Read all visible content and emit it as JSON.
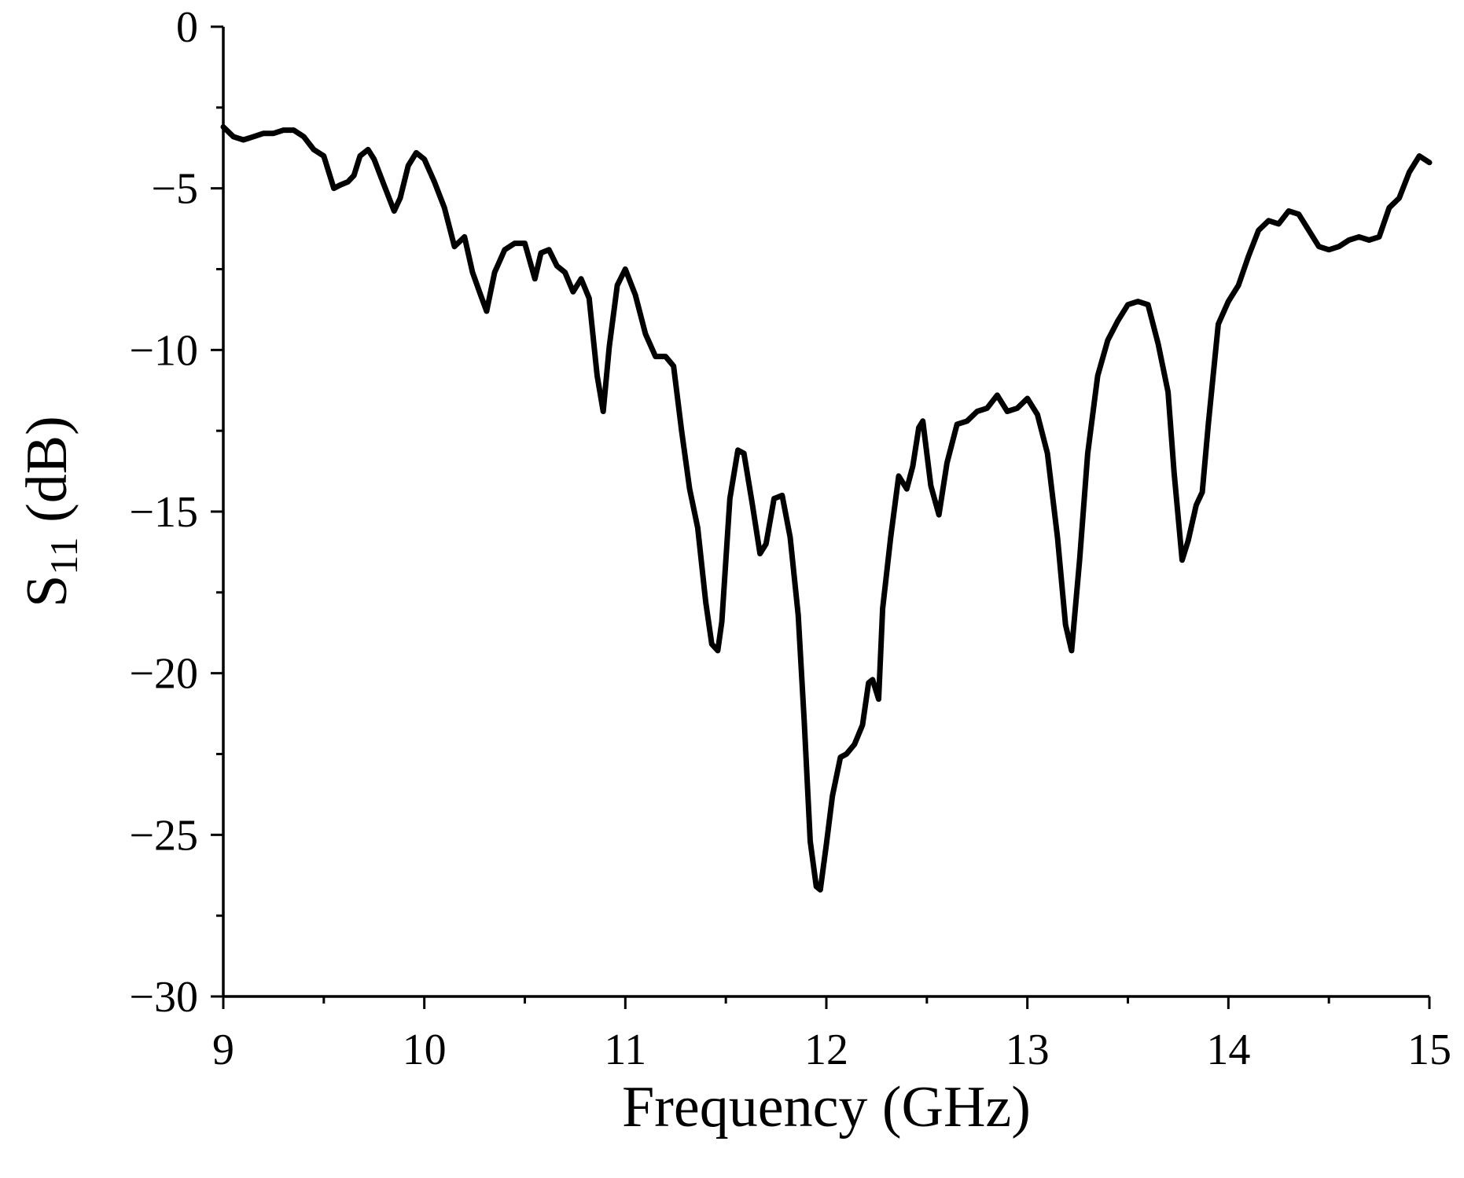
{
  "chart_data": {
    "type": "line",
    "title": "",
    "xlabel": "Frequency (GHz)",
    "ylabel_main": "S",
    "ylabel_sub": "11",
    "ylabel_unit": " (dB)",
    "xlim": [
      9,
      15
    ],
    "ylim": [
      -30,
      0
    ],
    "xticks": [
      9,
      10,
      11,
      12,
      13,
      14,
      15
    ],
    "xtick_labels": [
      "9",
      "10",
      "11",
      "12",
      "13",
      "14",
      "15"
    ],
    "xminor_step": 0.5,
    "yticks": [
      0,
      -5,
      -10,
      -15,
      -20,
      -25,
      -30
    ],
    "ytick_labels": [
      "0",
      "−5",
      "−10",
      "−15",
      "−20",
      "−25",
      "−30"
    ],
    "yminor_step": 2.5,
    "grid": false,
    "legend": "none",
    "line_color": "#000000",
    "series": [
      {
        "x": [
          9.0,
          9.05,
          9.1,
          9.15,
          9.2,
          9.25,
          9.3,
          9.35,
          9.4,
          9.45,
          9.5,
          9.55,
          9.58,
          9.62,
          9.65,
          9.68,
          9.72,
          9.75,
          9.8,
          9.85,
          9.88,
          9.92,
          9.96,
          10.0,
          10.05,
          10.1,
          10.15,
          10.2,
          10.24,
          10.28,
          10.31,
          10.35,
          10.4,
          10.45,
          10.5,
          10.55,
          10.58,
          10.62,
          10.66,
          10.7,
          10.74,
          10.78,
          10.82,
          10.86,
          10.89,
          10.92,
          10.96,
          11.0,
          11.05,
          11.1,
          11.15,
          11.2,
          11.24,
          11.28,
          11.32,
          11.36,
          11.4,
          11.43,
          11.46,
          11.48,
          11.52,
          11.56,
          11.59,
          11.63,
          11.67,
          11.7,
          11.74,
          11.78,
          11.82,
          11.86,
          11.89,
          11.92,
          11.95,
          11.97,
          12.0,
          12.03,
          12.07,
          12.1,
          12.14,
          12.18,
          12.21,
          12.23,
          12.26,
          12.28,
          12.32,
          12.36,
          12.4,
          12.43,
          12.46,
          12.48,
          12.52,
          12.56,
          12.6,
          12.65,
          12.7,
          12.75,
          12.8,
          12.85,
          12.9,
          12.95,
          13.0,
          13.05,
          13.1,
          13.15,
          13.19,
          13.22,
          13.26,
          13.3,
          13.35,
          13.4,
          13.45,
          13.5,
          13.55,
          13.6,
          13.65,
          13.7,
          13.73,
          13.77,
          13.8,
          13.84,
          13.87,
          13.9,
          13.95,
          14.0,
          14.05,
          14.1,
          14.15,
          14.2,
          14.25,
          14.3,
          14.35,
          14.4,
          14.45,
          14.5,
          14.55,
          14.6,
          14.65,
          14.7,
          14.75,
          14.8,
          14.85,
          14.9,
          14.95,
          15.0
        ],
        "values": [
          -3.1,
          -3.4,
          -3.5,
          -3.4,
          -3.3,
          -3.3,
          -3.2,
          -3.2,
          -3.4,
          -3.8,
          -4.0,
          -5.0,
          -4.9,
          -4.8,
          -4.6,
          -4.0,
          -3.8,
          -4.1,
          -4.9,
          -5.7,
          -5.3,
          -4.3,
          -3.9,
          -4.1,
          -4.8,
          -5.6,
          -6.8,
          -6.5,
          -7.6,
          -8.3,
          -8.8,
          -7.6,
          -6.9,
          -6.7,
          -6.7,
          -7.8,
          -7.0,
          -6.9,
          -7.4,
          -7.6,
          -8.2,
          -7.8,
          -8.4,
          -10.8,
          -11.9,
          -9.9,
          -8.0,
          -7.5,
          -8.3,
          -9.5,
          -10.2,
          -10.2,
          -10.5,
          -12.5,
          -14.3,
          -15.5,
          -17.8,
          -19.1,
          -19.3,
          -18.4,
          -14.6,
          -13.1,
          -13.2,
          -14.7,
          -16.3,
          -16.0,
          -14.6,
          -14.5,
          -15.8,
          -18.2,
          -21.5,
          -25.2,
          -26.6,
          -26.7,
          -25.3,
          -23.8,
          -22.6,
          -22.5,
          -22.2,
          -21.6,
          -20.3,
          -20.2,
          -20.8,
          -18.0,
          -15.8,
          -13.9,
          -14.3,
          -13.6,
          -12.4,
          -12.2,
          -14.2,
          -15.1,
          -13.5,
          -12.3,
          -12.2,
          -11.9,
          -11.8,
          -11.4,
          -11.9,
          -11.8,
          -11.5,
          -12.0,
          -13.2,
          -15.8,
          -18.5,
          -19.3,
          -16.5,
          -13.2,
          -10.8,
          -9.7,
          -9.1,
          -8.6,
          -8.5,
          -8.6,
          -9.8,
          -11.3,
          -13.8,
          -16.5,
          -15.9,
          -14.8,
          -14.4,
          -12.3,
          -9.2,
          -8.5,
          -8.0,
          -7.1,
          -6.3,
          -6.0,
          -6.1,
          -5.7,
          -5.8,
          -6.3,
          -6.8,
          -6.9,
          -6.8,
          -6.6,
          -6.5,
          -6.6,
          -6.5,
          -5.6,
          -5.3,
          -4.5,
          -4.0,
          -4.2
        ]
      }
    ]
  }
}
